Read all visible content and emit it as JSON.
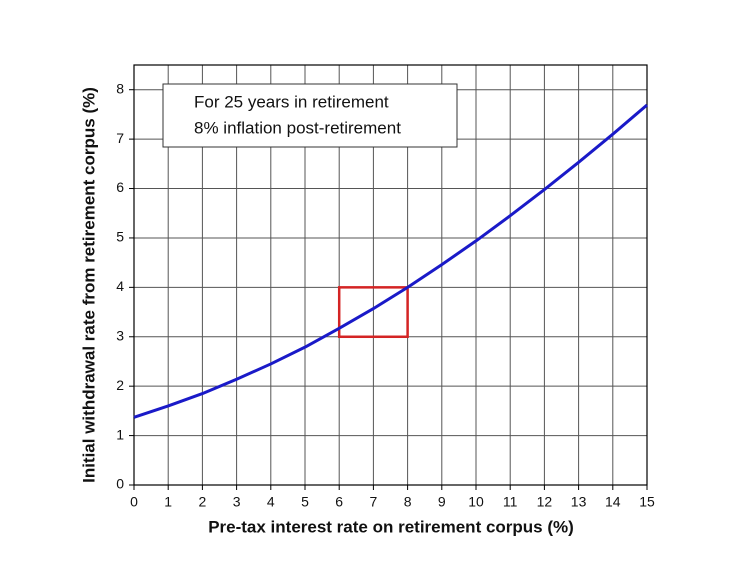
{
  "chart_data": {
    "type": "line",
    "x_label": "Pre-tax interest rate on retirement corpus (%)",
    "y_label": "Initial withdrawal rate from retirement corpus (%)",
    "annotations": [
      "For 25 years in retirement",
      "8% inflation post-retirement"
    ],
    "x": [
      0,
      1,
      2,
      3,
      4,
      5,
      6,
      7,
      8,
      9,
      10,
      11,
      12,
      13,
      14,
      15
    ],
    "series": [
      {
        "color": "#1a1ac8",
        "values": [
          1.37,
          1.6,
          1.85,
          2.14,
          2.45,
          2.79,
          3.17,
          3.57,
          4.0,
          4.46,
          4.94,
          5.45,
          5.98,
          6.53,
          7.1,
          7.69
        ]
      }
    ],
    "highlight": {
      "color": "#d42424",
      "x": [
        6,
        8
      ],
      "y": [
        3,
        4
      ]
    },
    "xlim": [
      0,
      15
    ],
    "xticks": [
      0,
      1,
      2,
      3,
      4,
      5,
      6,
      7,
      8,
      9,
      10,
      11,
      12,
      13,
      14,
      15
    ],
    "ylim": [
      0,
      8.5
    ],
    "yticks": [
      0,
      1,
      2,
      3,
      4,
      5,
      6,
      7,
      8
    ],
    "grid": true
  }
}
